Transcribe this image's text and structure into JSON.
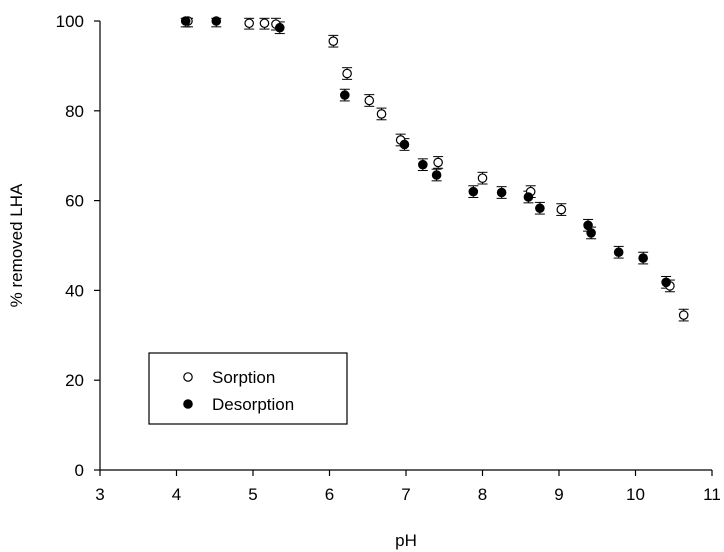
{
  "chart_data": {
    "type": "scatter",
    "title": "",
    "xlabel": "pH",
    "ylabel": "% removed LHA",
    "xlim": [
      3,
      11
    ],
    "ylim": [
      0,
      100
    ],
    "x_ticks": [
      "3",
      "4",
      "5",
      "6",
      "7",
      "8",
      "9",
      "10",
      "11"
    ],
    "y_ticks": [
      "0",
      "20",
      "40",
      "60",
      "80",
      "100"
    ],
    "grid": false,
    "legend_position": "bottom-left",
    "error_bar_half_width": 1.3,
    "series": [
      {
        "name": "Sorption",
        "marker": "open-circle",
        "color": "#000000",
        "points": [
          {
            "x": 4.15,
            "y": 100.0
          },
          {
            "x": 4.95,
            "y": 99.5
          },
          {
            "x": 5.15,
            "y": 99.5
          },
          {
            "x": 5.3,
            "y": 99.3
          },
          {
            "x": 6.05,
            "y": 95.5
          },
          {
            "x": 6.23,
            "y": 88.3
          },
          {
            "x": 6.52,
            "y": 82.3
          },
          {
            "x": 6.68,
            "y": 79.3
          },
          {
            "x": 6.93,
            "y": 73.5
          },
          {
            "x": 7.42,
            "y": 68.5
          },
          {
            "x": 8.0,
            "y": 65.0
          },
          {
            "x": 8.63,
            "y": 62.0
          },
          {
            "x": 9.03,
            "y": 58.0
          },
          {
            "x": 10.45,
            "y": 41.0
          },
          {
            "x": 10.63,
            "y": 34.5
          }
        ]
      },
      {
        "name": "Desorption",
        "marker": "filled-circle",
        "color": "#000000",
        "points": [
          {
            "x": 4.12,
            "y": 100.0
          },
          {
            "x": 4.52,
            "y": 100.0
          },
          {
            "x": 5.35,
            "y": 98.5
          },
          {
            "x": 6.2,
            "y": 83.5
          },
          {
            "x": 6.98,
            "y": 72.5
          },
          {
            "x": 7.22,
            "y": 68.0
          },
          {
            "x": 7.4,
            "y": 65.7
          },
          {
            "x": 7.88,
            "y": 62.0
          },
          {
            "x": 8.25,
            "y": 61.8
          },
          {
            "x": 8.6,
            "y": 60.8
          },
          {
            "x": 8.75,
            "y": 58.3
          },
          {
            "x": 9.38,
            "y": 54.5
          },
          {
            "x": 9.42,
            "y": 52.8
          },
          {
            "x": 9.78,
            "y": 48.5
          },
          {
            "x": 10.1,
            "y": 47.2
          },
          {
            "x": 10.4,
            "y": 41.8
          }
        ]
      }
    ]
  }
}
